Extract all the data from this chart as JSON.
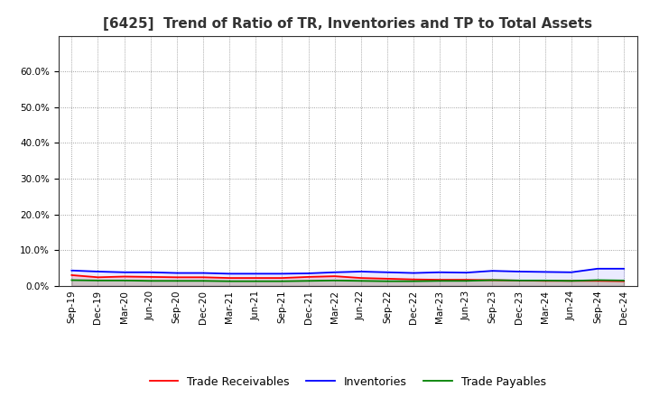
{
  "title": "[6425]  Trend of Ratio of TR, Inventories and TP to Total Assets",
  "x_labels": [
    "Sep-19",
    "Dec-19",
    "Mar-20",
    "Jun-20",
    "Sep-20",
    "Dec-20",
    "Mar-21",
    "Jun-21",
    "Sep-21",
    "Dec-21",
    "Mar-22",
    "Jun-22",
    "Sep-22",
    "Dec-22",
    "Mar-23",
    "Jun-23",
    "Sep-23",
    "Dec-23",
    "Mar-24",
    "Jun-24",
    "Sep-24",
    "Dec-24"
  ],
  "trade_receivables": [
    0.03,
    0.024,
    0.026,
    0.025,
    0.024,
    0.024,
    0.022,
    0.022,
    0.022,
    0.025,
    0.027,
    0.022,
    0.02,
    0.018,
    0.017,
    0.017,
    0.016,
    0.015,
    0.014,
    0.014,
    0.014,
    0.013
  ],
  "inventories": [
    0.043,
    0.04,
    0.038,
    0.038,
    0.036,
    0.036,
    0.034,
    0.034,
    0.034,
    0.035,
    0.038,
    0.04,
    0.038,
    0.036,
    0.038,
    0.037,
    0.042,
    0.04,
    0.039,
    0.038,
    0.048,
    0.048
  ],
  "trade_payables": [
    0.016,
    0.015,
    0.015,
    0.014,
    0.014,
    0.014,
    0.013,
    0.013,
    0.013,
    0.014,
    0.015,
    0.014,
    0.013,
    0.013,
    0.014,
    0.014,
    0.016,
    0.015,
    0.015,
    0.014,
    0.016,
    0.015
  ],
  "ylim": [
    0.0,
    0.7
  ],
  "yticks": [
    0.0,
    0.1,
    0.2,
    0.3,
    0.4,
    0.5,
    0.6
  ],
  "line_colors": {
    "trade_receivables": "#FF0000",
    "inventories": "#0000FF",
    "trade_payables": "#008000"
  },
  "legend_labels": [
    "Trade Receivables",
    "Inventories",
    "Trade Payables"
  ],
  "background_color": "#FFFFFF",
  "plot_bg_color": "#FFFFFF",
  "grid_color": "#888888",
  "title_fontsize": 11,
  "tick_fontsize": 7.5,
  "legend_fontsize": 9
}
